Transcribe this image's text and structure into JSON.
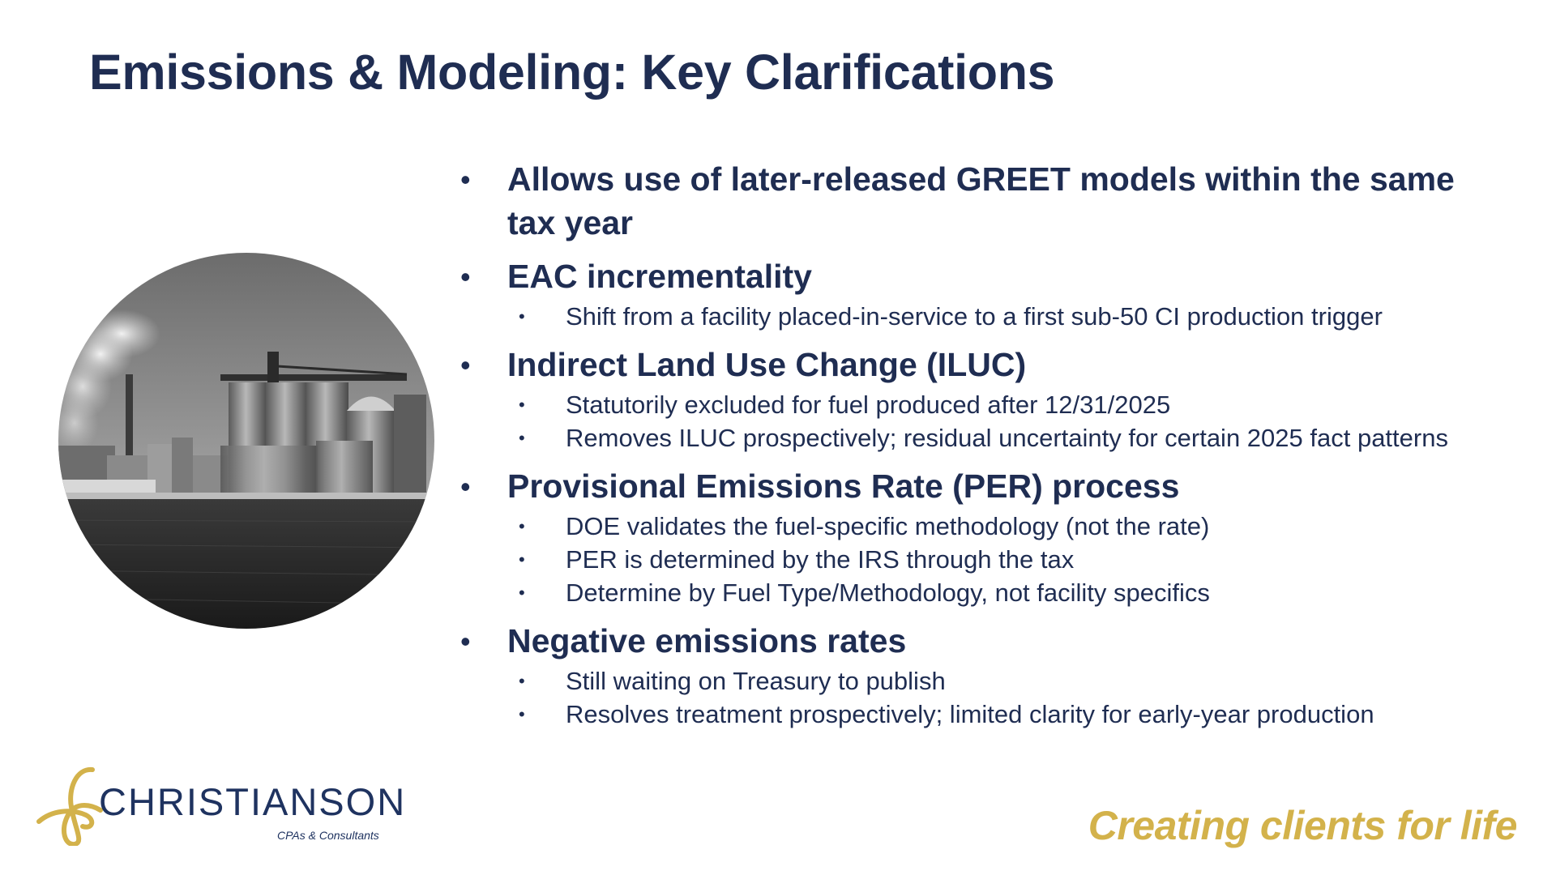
{
  "slide": {
    "title": "Emissions & Modeling: Key Clarifications",
    "bullets": [
      {
        "text": "Allows use of later-released GREET models within the same tax year",
        "subs": []
      },
      {
        "text": "EAC incrementality",
        "subs": [
          "Shift from a facility placed-in-service to a first sub-50 CI production trigger"
        ]
      },
      {
        "text": "Indirect Land Use Change (ILUC)",
        "subs": [
          "Statutorily excluded for fuel produced after 12/31/2025",
          "Removes ILUC prospectively; residual uncertainty for certain 2025 fact patterns"
        ]
      },
      {
        "text": "Provisional Emissions Rate (PER) process",
        "subs": [
          "DOE validates the fuel-specific methodology (not the rate)",
          "PER is determined by the IRS through the tax",
          "Determine by Fuel Type/Methodology, not facility specifics"
        ]
      },
      {
        "text": "Negative emissions rates",
        "subs": [
          "Still waiting on Treasury to publish",
          "Resolves treatment prospectively; limited clarity for early-year production"
        ]
      }
    ]
  },
  "logo": {
    "name": "CHRISTIANSON",
    "subtitle": "CPAs & Consultants",
    "icon": "ribbon-mark-icon"
  },
  "tagline": "Creating clients for life",
  "colors": {
    "navy": "#1f2d52",
    "gold": "#d3b24b"
  },
  "image": {
    "icon": "industrial-facility-photo"
  }
}
